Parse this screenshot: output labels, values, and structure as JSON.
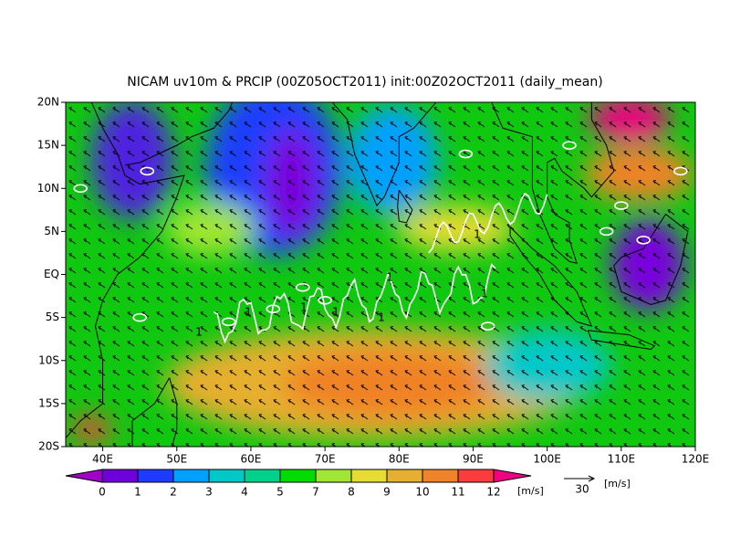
{
  "map": {
    "title": "NICAM uv10m & PRCIP (00Z05OCT2011) init:00Z02OCT2011 (daily_mean)",
    "xlim": [
      35,
      120
    ],
    "ylim": [
      -20,
      20
    ],
    "xticks": [
      {
        "value": 40,
        "label": "40E"
      },
      {
        "value": 50,
        "label": "50E"
      },
      {
        "value": 60,
        "label": "60E"
      },
      {
        "value": 70,
        "label": "70E"
      },
      {
        "value": 80,
        "label": "80E"
      },
      {
        "value": 90,
        "label": "90E"
      },
      {
        "value": 100,
        "label": "100E"
      },
      {
        "value": 110,
        "label": "110E"
      },
      {
        "value": 120,
        "label": "120E"
      }
    ],
    "yticks": [
      {
        "value": 20,
        "label": "20N"
      },
      {
        "value": 15,
        "label": "15N"
      },
      {
        "value": 10,
        "label": "10N"
      },
      {
        "value": 5,
        "label": "5N"
      },
      {
        "value": 0,
        "label": "EQ"
      },
      {
        "value": -5,
        "label": "5S"
      },
      {
        "value": -10,
        "label": "10S"
      },
      {
        "value": -15,
        "label": "15S"
      },
      {
        "value": -20,
        "label": "20S"
      }
    ],
    "contour_label": 1,
    "colorbar": {
      "levels": [
        0,
        1,
        2,
        3,
        4,
        5,
        7,
        8,
        9,
        10,
        11,
        12
      ],
      "colors": [
        "#a000c8",
        "#6e00dc",
        "#1e3cff",
        "#00a0ff",
        "#00c8c8",
        "#00d28c",
        "#00dc00",
        "#a0e632",
        "#e6dc32",
        "#e6af2d",
        "#f08228",
        "#fa3c3c",
        "#f00082"
      ],
      "unit": "[m/s]"
    },
    "reference_vector": {
      "label": 30,
      "unit": "[m/s]"
    }
  }
}
